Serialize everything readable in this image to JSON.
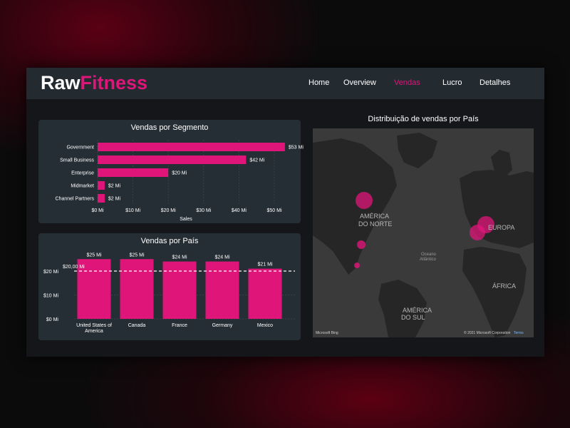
{
  "brand": {
    "part1": "Raw",
    "part2": "Fitness"
  },
  "nav": [
    "Home",
    "Overview",
    "Vendas",
    "Lucro",
    "Detalhes"
  ],
  "colors": {
    "accent": "#e0157a",
    "panel": "#262e35",
    "header": "#232a30"
  },
  "segment_chart": {
    "title": "Vendas por Segmento",
    "xlabel": "Sales",
    "ticks": [
      "$0 Mi",
      "$10 Mi",
      "$20 Mi",
      "$30 Mi",
      "$40 Mi",
      "$50 Mi"
    ]
  },
  "country_chart": {
    "title": "Vendas por País",
    "ticks": [
      "$0 Mi",
      "$10 Mi",
      "$20 Mi"
    ],
    "reference_label": "$20,00 Mi"
  },
  "map": {
    "title": "Distribuição de vendas por País",
    "labels": {
      "north_america": [
        "AMÉRICA",
        "DO NORTE"
      ],
      "south_america": [
        "AMÉRICA",
        "DO SUL"
      ],
      "europe": "EUROPA",
      "africa": "ÁFRICA",
      "ocean": [
        "Oceano",
        "Atlântico"
      ]
    },
    "credit_left": "Microsoft Bing",
    "credit_right": "© 2021 Microsoft Corporation",
    "terms": "Terms"
  },
  "chart_data": [
    {
      "type": "bar",
      "orientation": "horizontal",
      "title": "Vendas por Segmento",
      "xlabel": "Sales",
      "categories": [
        "Government",
        "Small Business",
        "Enterprise",
        "Midmarket",
        "Channel Partners"
      ],
      "values": [
        53,
        42,
        20,
        2,
        2
      ],
      "data_labels": [
        "$53 Mi",
        "$42 Mi",
        "$20 Mi",
        "$2 Mi",
        "$2 Mi"
      ],
      "xlim": [
        0,
        55
      ],
      "grid": true
    },
    {
      "type": "bar",
      "orientation": "vertical",
      "title": "Vendas por País",
      "categories": [
        "United States of America",
        "Canada",
        "France",
        "Germany",
        "Mexico"
      ],
      "values": [
        25,
        25,
        24,
        24,
        21
      ],
      "data_labels": [
        "$25 Mi",
        "$25 Mi",
        "$24 Mi",
        "$24 Mi",
        "$21 Mi"
      ],
      "ylim": [
        0,
        25
      ],
      "reference_line": 20,
      "grid": true
    }
  ]
}
